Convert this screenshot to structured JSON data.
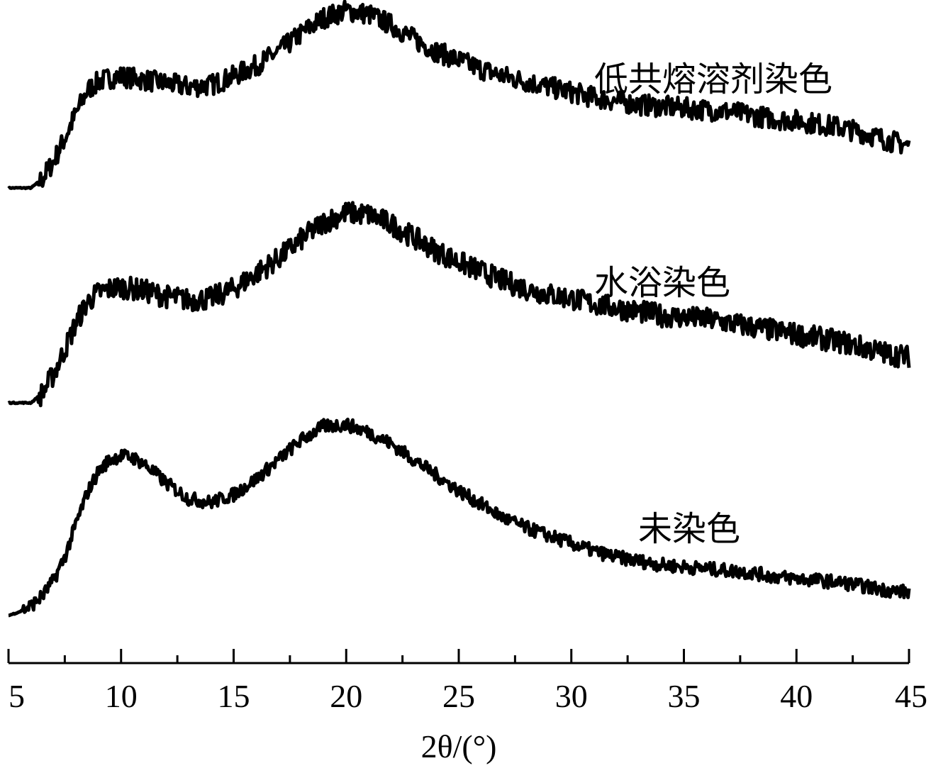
{
  "chart_data": {
    "type": "line",
    "title": "",
    "xlabel": "2θ/(°)",
    "ylabel": "",
    "xlim": [
      5,
      45
    ],
    "x_ticks_major": [
      5,
      10,
      15,
      20,
      25,
      30,
      35,
      40,
      45
    ],
    "x_ticks_minor": [
      7.5,
      12.5,
      17.5,
      22.5,
      27.5,
      32.5,
      37.5,
      42.5
    ],
    "y_axis_visible": false,
    "grid": false,
    "legend": "labels placed near each curve",
    "series": [
      {
        "name": "低共熔溶剂染色",
        "x": [
          5,
          6,
          6.5,
          7,
          7.5,
          8,
          8.5,
          9,
          9.5,
          10,
          11,
          12,
          13,
          14,
          15,
          16,
          17,
          18,
          19,
          20,
          21,
          22,
          23,
          24,
          25,
          26,
          27,
          28,
          29,
          30,
          31,
          32,
          33,
          34,
          35,
          36,
          37,
          38,
          39,
          40,
          41,
          42,
          43,
          44,
          45
        ],
        "y": [
          0.0,
          0.0,
          0.05,
          0.15,
          0.28,
          0.42,
          0.55,
          0.6,
          0.62,
          0.63,
          0.61,
          0.59,
          0.57,
          0.58,
          0.63,
          0.69,
          0.77,
          0.87,
          0.96,
          1.0,
          0.98,
          0.92,
          0.84,
          0.77,
          0.72,
          0.67,
          0.63,
          0.6,
          0.57,
          0.54,
          0.51,
          0.49,
          0.47,
          0.46,
          0.45,
          0.44,
          0.43,
          0.41,
          0.39,
          0.38,
          0.36,
          0.34,
          0.31,
          0.27,
          0.24
        ]
      },
      {
        "name": "水浴染色",
        "x": [
          5,
          6,
          6.5,
          7,
          7.5,
          8,
          8.5,
          9,
          9.5,
          10,
          11,
          12,
          13,
          14,
          15,
          16,
          17,
          18,
          19,
          20,
          21,
          22,
          23,
          24,
          25,
          26,
          27,
          28,
          29,
          30,
          31,
          32,
          33,
          34,
          35,
          36,
          37,
          38,
          39,
          40,
          41,
          42,
          43,
          44,
          45
        ],
        "y": [
          0.0,
          0.0,
          0.05,
          0.15,
          0.28,
          0.42,
          0.53,
          0.58,
          0.6,
          0.61,
          0.59,
          0.56,
          0.54,
          0.55,
          0.6,
          0.68,
          0.76,
          0.86,
          0.95,
          1.0,
          0.99,
          0.94,
          0.87,
          0.8,
          0.74,
          0.69,
          0.64,
          0.6,
          0.57,
          0.55,
          0.52,
          0.5,
          0.48,
          0.46,
          0.45,
          0.44,
          0.42,
          0.4,
          0.38,
          0.36,
          0.34,
          0.32,
          0.29,
          0.26,
          0.24
        ]
      },
      {
        "name": "未染色",
        "x": [
          5,
          5.5,
          6,
          6.5,
          7,
          7.5,
          8,
          8.5,
          9,
          9.5,
          10,
          10.5,
          11,
          12,
          13,
          14,
          15,
          16,
          17,
          18,
          19,
          20,
          21,
          22,
          23,
          24,
          25,
          26,
          27,
          28,
          29,
          30,
          31,
          32,
          33,
          34,
          35,
          36,
          37,
          38,
          39,
          40,
          41,
          42,
          43,
          44,
          45
        ],
        "y": [
          0.0,
          0.02,
          0.05,
          0.1,
          0.18,
          0.3,
          0.47,
          0.63,
          0.74,
          0.8,
          0.82,
          0.81,
          0.78,
          0.68,
          0.6,
          0.58,
          0.62,
          0.7,
          0.8,
          0.9,
          0.97,
          0.98,
          0.94,
          0.88,
          0.8,
          0.72,
          0.64,
          0.57,
          0.5,
          0.45,
          0.41,
          0.37,
          0.33,
          0.3,
          0.28,
          0.26,
          0.25,
          0.24,
          0.23,
          0.22,
          0.2,
          0.19,
          0.18,
          0.17,
          0.15,
          0.13,
          0.12
        ]
      }
    ]
  }
}
